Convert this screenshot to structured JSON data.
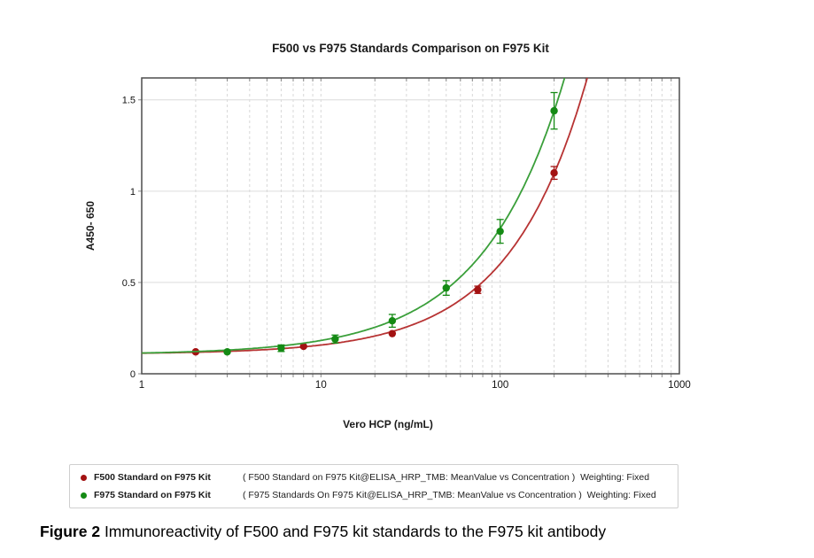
{
  "caption": {
    "label": "Figure 2",
    "text": " Immunoreactivity of F500 and F975 kit standards to the F975 kit antibody"
  },
  "legend": {
    "items": [
      {
        "name": "F500 Standard on F975 Kit",
        "detail": "( F500 Standard on F975 Kit@ELISA_HRP_TMB: MeanValue vs Concentration )  Weighting: Fixed",
        "color": "#a31212"
      },
      {
        "name": "F975 Standard on F975 Kit",
        "detail": "( F975 Standards On F975 Kit@ELISA_HRP_TMB: MeanValue vs Concentration )  Weighting: Fixed",
        "color": "#148a14"
      }
    ]
  },
  "chart_data": {
    "type": "scatter",
    "title": "F500 vs F975 Standards Comparison on F975 Kit",
    "xlabel": "Vero HCP (ng/mL)",
    "ylabel": "A450- 650",
    "x_scale": "log",
    "xlim": [
      1,
      1000
    ],
    "ylim": [
      0,
      1.62
    ],
    "x_ticks": [
      1,
      10,
      100,
      1000
    ],
    "y_ticks": [
      0,
      0.5,
      1,
      1.5
    ],
    "grid": {
      "vertical": "log-minor-dashed",
      "horizontal": "major-solid"
    },
    "legend_position": "bottom",
    "series": [
      {
        "name": "F500 Standard on F975 Kit",
        "color": "#b73333",
        "marker_color": "#a31212",
        "points": [
          {
            "x": 2,
            "y": 0.12,
            "err": 0.008
          },
          {
            "x": 8,
            "y": 0.15,
            "err": 0.008
          },
          {
            "x": 25,
            "y": 0.22,
            "err": 0.01
          },
          {
            "x": 75,
            "y": 0.46,
            "err": 0.02
          },
          {
            "x": 200,
            "y": 1.1,
            "err": 0.035
          }
        ],
        "fit": {
          "a": 0.108,
          "k": 0.00494,
          "p": 1.0
        }
      },
      {
        "name": "F975 Standard on F975 Kit",
        "color": "#3a9f3a",
        "marker_color": "#148a14",
        "points": [
          {
            "x": 3,
            "y": 0.12,
            "err": 0.008
          },
          {
            "x": 6,
            "y": 0.14,
            "err": 0.018
          },
          {
            "x": 12,
            "y": 0.19,
            "err": 0.022
          },
          {
            "x": 25,
            "y": 0.29,
            "err": 0.035
          },
          {
            "x": 50,
            "y": 0.47,
            "err": 0.04
          },
          {
            "x": 100,
            "y": 0.78,
            "err": 0.065
          },
          {
            "x": 200,
            "y": 1.44,
            "err": 0.1
          }
        ],
        "fit": {
          "a": 0.105,
          "k": 0.00869,
          "p": 0.95
        }
      }
    ]
  }
}
